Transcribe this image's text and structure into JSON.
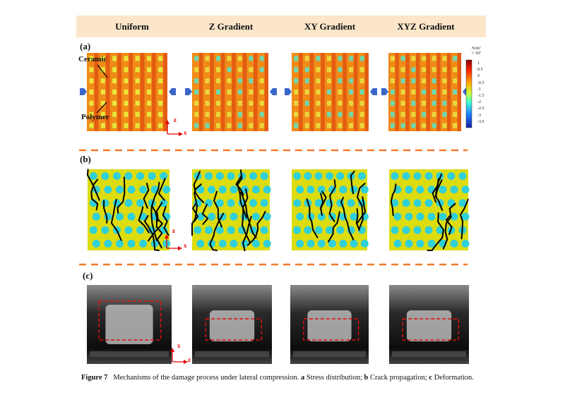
{
  "header": {
    "columns": [
      "Uniform",
      "Z Gradient",
      "XY Gradient",
      "XYZ Gradient"
    ]
  },
  "rows": [
    {
      "label": "(a)"
    },
    {
      "label": "(b)"
    },
    {
      "label": "(c)"
    }
  ],
  "annotations": {
    "ceramic": "Ceramic",
    "polymer": "Polymer"
  },
  "axes": {
    "row_a": [
      "z",
      "x"
    ],
    "row_b": [
      "z",
      "x"
    ],
    "row_c": [
      "x",
      "z"
    ]
  },
  "colorbar": {
    "unit": "N/m²",
    "scale": "× 10⁷",
    "ticks": [
      "1",
      "0.5",
      "0",
      "-0.5",
      "-1",
      "-1.5",
      "-2",
      "-2.5",
      "-3",
      "-3.5"
    ],
    "colormap": "jet"
  },
  "colors": {
    "header_bg": "#fbe6c9",
    "divider": "#f07a2a",
    "arrow": "#3a66c8",
    "axis": "#e00000",
    "box": "#e01010"
  },
  "caption": {
    "figure": "Figure 7",
    "text": "Mechanisms of the damage process under lateral compression.",
    "a_key": "a",
    "a_text": "Stress distribution;",
    "b_key": "b",
    "b_text": "Crack propagation;",
    "c_key": "c",
    "c_text": "Deformation."
  }
}
